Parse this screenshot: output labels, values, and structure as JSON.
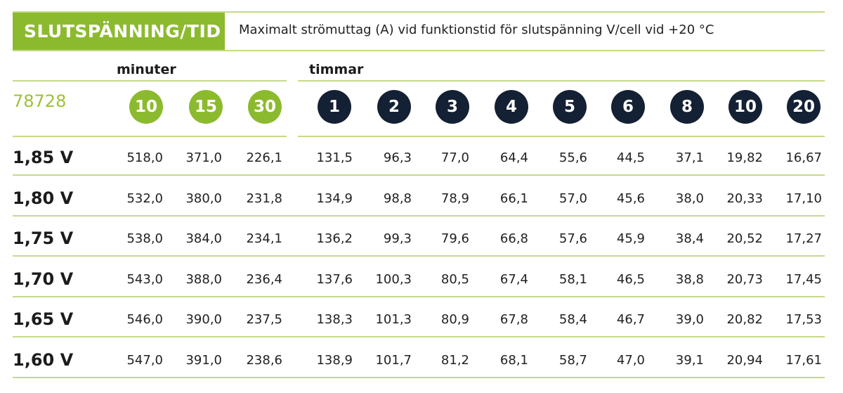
{
  "header": {
    "title": "SLUTSPÄNNING/TID",
    "subtitle": "Maximalt strömuttag (A) vid funktionstid för slutspänning V/cell vid +20 °C"
  },
  "groups": {
    "minutes_label": "minuter",
    "hours_label": "timmar"
  },
  "code": "78728",
  "columns": [
    {
      "label": "10",
      "unit": "min"
    },
    {
      "label": "15",
      "unit": "min"
    },
    {
      "label": "30",
      "unit": "min"
    },
    {
      "label": "1",
      "unit": "h"
    },
    {
      "label": "2",
      "unit": "h"
    },
    {
      "label": "3",
      "unit": "h"
    },
    {
      "label": "4",
      "unit": "h"
    },
    {
      "label": "5",
      "unit": "h"
    },
    {
      "label": "6",
      "unit": "h"
    },
    {
      "label": "8",
      "unit": "h"
    },
    {
      "label": "10",
      "unit": "h"
    },
    {
      "label": "20",
      "unit": "h"
    }
  ],
  "rows": [
    {
      "voltage": "1,85 V",
      "values": [
        "518,0",
        "371,0",
        "226,1",
        "131,5",
        "96,3",
        "77,0",
        "64,4",
        "55,6",
        "44,5",
        "37,1",
        "19,82",
        "16,67"
      ]
    },
    {
      "voltage": "1,80 V",
      "values": [
        "532,0",
        "380,0",
        "231,8",
        "134,9",
        "98,8",
        "78,9",
        "66,1",
        "57,0",
        "45,6",
        "38,0",
        "20,33",
        "17,10"
      ]
    },
    {
      "voltage": "1,75 V",
      "values": [
        "538,0",
        "384,0",
        "234,1",
        "136,2",
        "99,3",
        "79,6",
        "66,8",
        "57,6",
        "45,9",
        "38,4",
        "20,52",
        "17,27"
      ]
    },
    {
      "voltage": "1,70 V",
      "values": [
        "543,0",
        "388,0",
        "236,4",
        "137,6",
        "100,3",
        "80,5",
        "67,4",
        "58,1",
        "46,5",
        "38,8",
        "20,73",
        "17,45"
      ]
    },
    {
      "voltage": "1,65 V",
      "values": [
        "546,0",
        "390,0",
        "237,5",
        "138,3",
        "101,3",
        "80,9",
        "67,8",
        "58,4",
        "46,7",
        "39,0",
        "20,82",
        "17,53"
      ]
    },
    {
      "voltage": "1,60 V",
      "values": [
        "547,0",
        "391,0",
        "238,6",
        "138,9",
        "101,7",
        "81,2",
        "68,1",
        "58,7",
        "47,0",
        "39,1",
        "20,94",
        "17,61"
      ]
    }
  ],
  "colors": {
    "accent_green": "#8cba2f",
    "dark_navy": "#142033",
    "line_green": "#c6d98a"
  }
}
